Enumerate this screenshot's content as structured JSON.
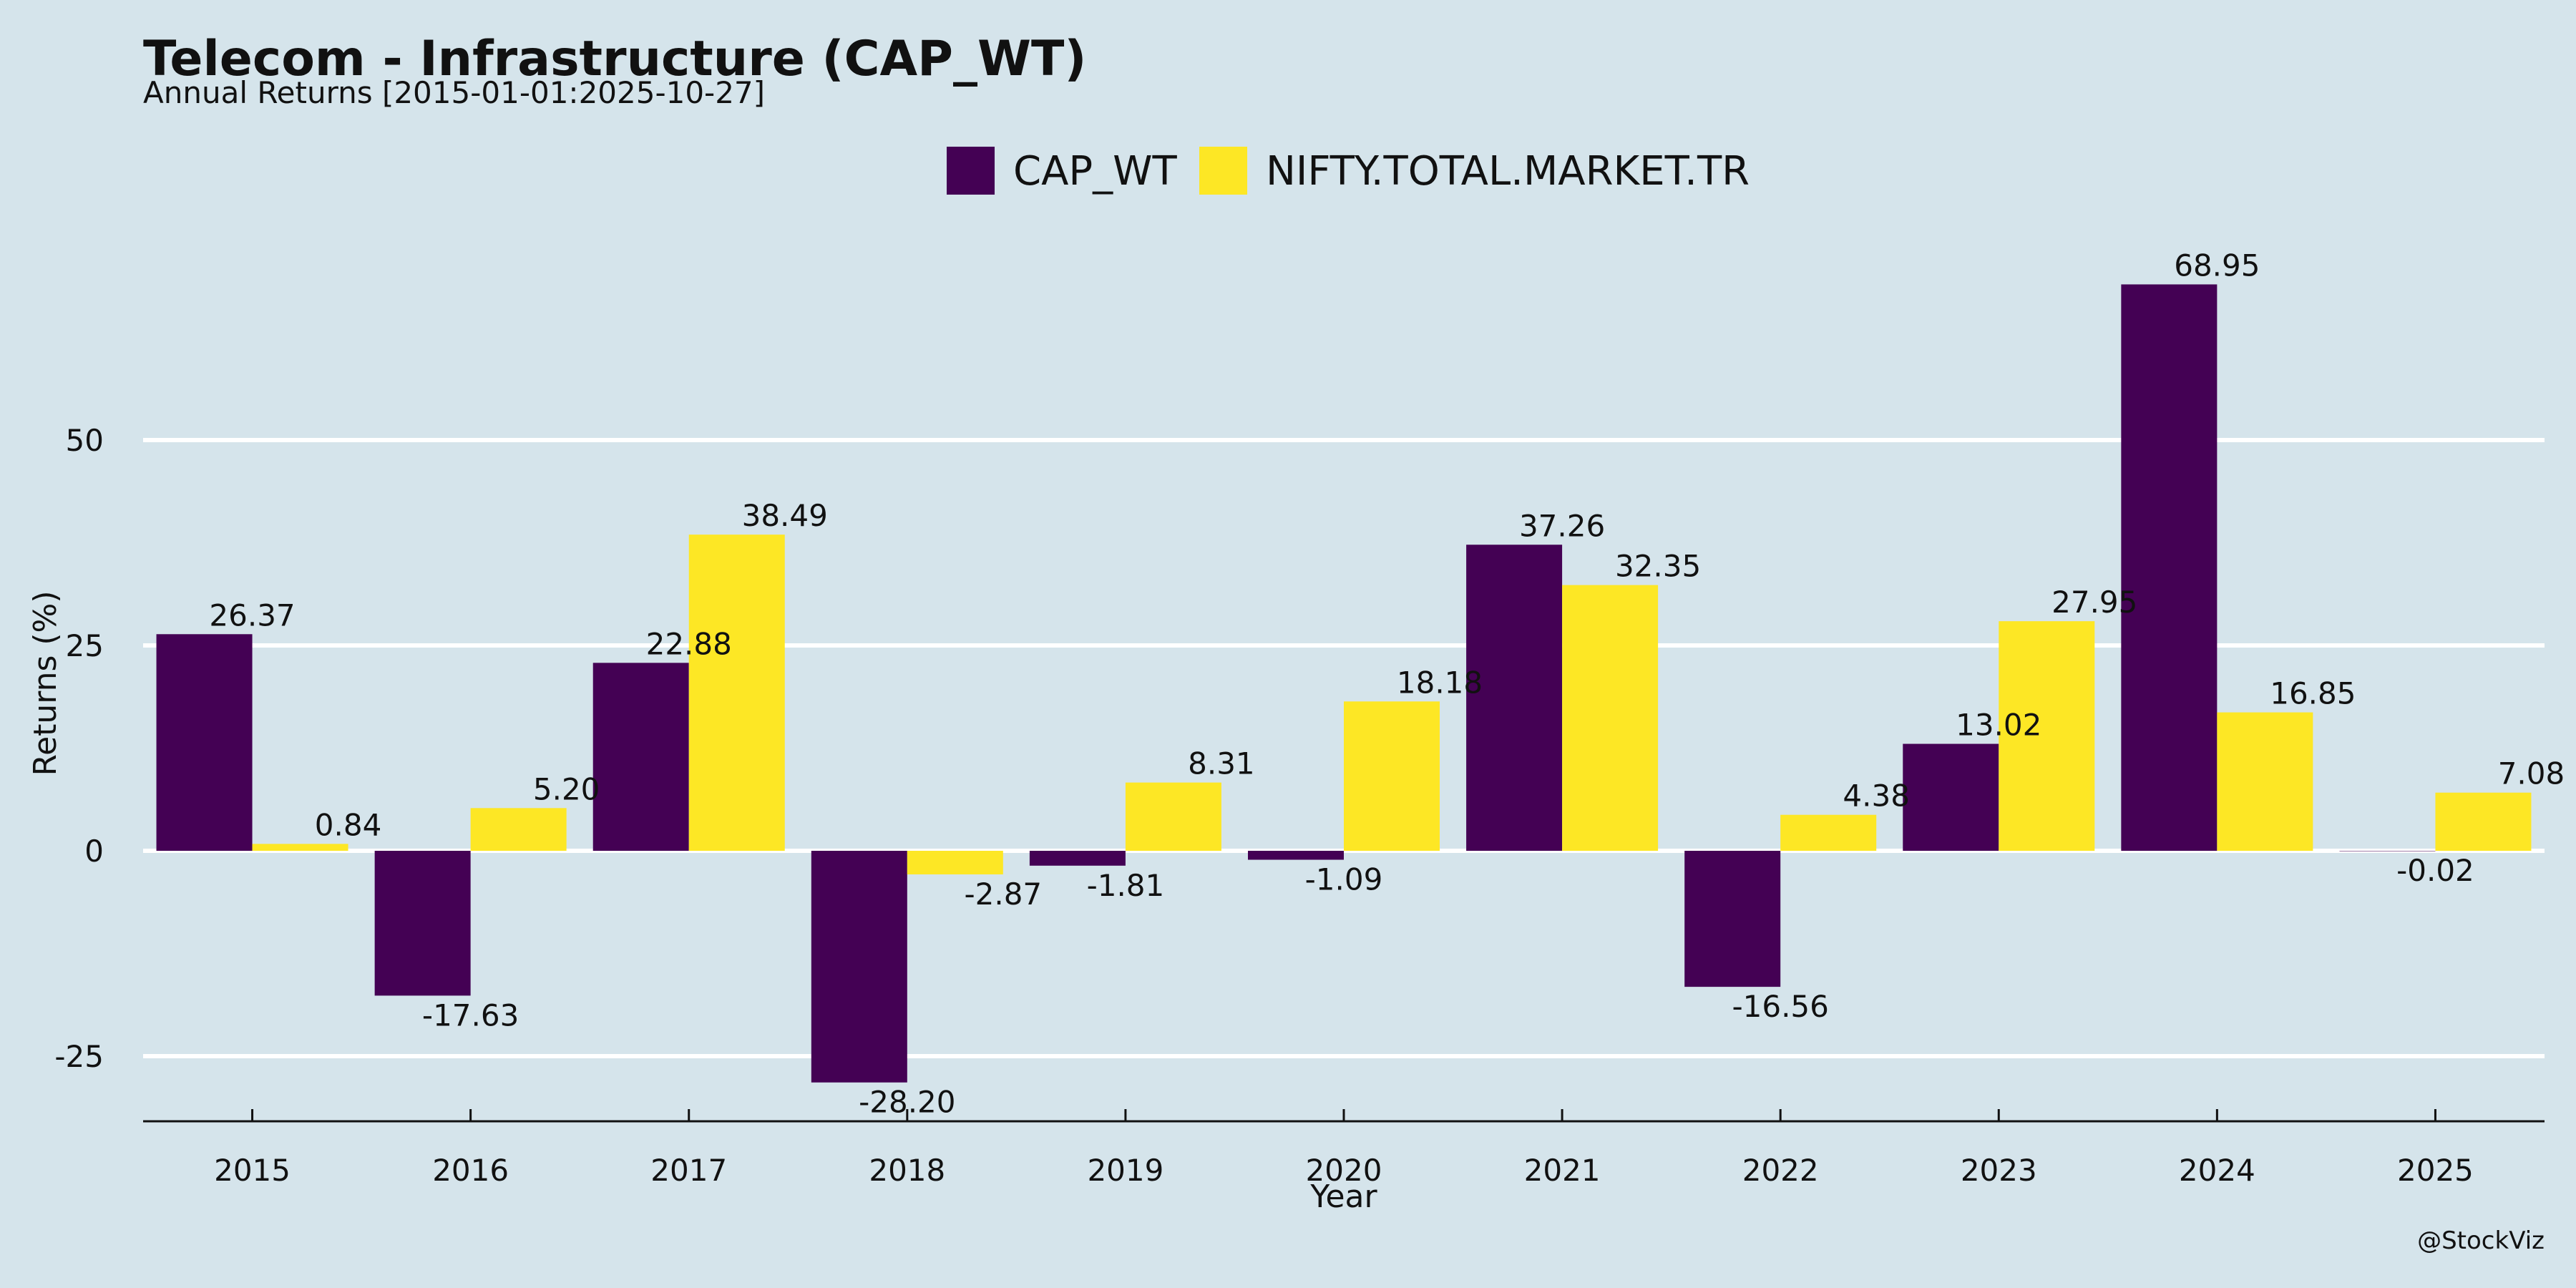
{
  "chart_data": {
    "type": "bar",
    "title": "Telecom - Infrastructure (CAP_WT)",
    "subtitle": "Annual Returns [2015-01-01:2025-10-27]",
    "xlabel": "Year",
    "ylabel": "Returns (%)",
    "categories": [
      "2015",
      "2016",
      "2017",
      "2018",
      "2019",
      "2020",
      "2021",
      "2022",
      "2023",
      "2024",
      "2025"
    ],
    "series": [
      {
        "name": "CAP_WT",
        "color": "#440154",
        "values": [
          26.37,
          -17.63,
          22.88,
          -28.2,
          -1.81,
          -1.09,
          37.26,
          -16.56,
          13.02,
          68.95,
          -0.02
        ],
        "labels": [
          "26.37",
          "-17.63",
          "22.88",
          "-28.20",
          "-1.81",
          "-1.09",
          "37.26",
          "-16.56",
          "13.02",
          "68.95",
          "-0.02"
        ]
      },
      {
        "name": "NIFTY.TOTAL.MARKET.TR",
        "color": "#fde725",
        "values": [
          0.84,
          5.2,
          38.49,
          -2.87,
          8.31,
          18.18,
          32.35,
          4.38,
          27.95,
          16.85,
          7.08
        ],
        "labels": [
          "0.84",
          "5.20",
          "38.49",
          "-2.87",
          "8.31",
          "18.18",
          "32.35",
          "4.38",
          "27.95",
          "16.85",
          "7.08"
        ]
      }
    ],
    "yticks": [
      -25,
      0,
      25,
      50
    ],
    "ylim": [
      -33,
      80
    ],
    "grid": "horizontal",
    "legend": "top-center",
    "credit": "@StockViz"
  }
}
